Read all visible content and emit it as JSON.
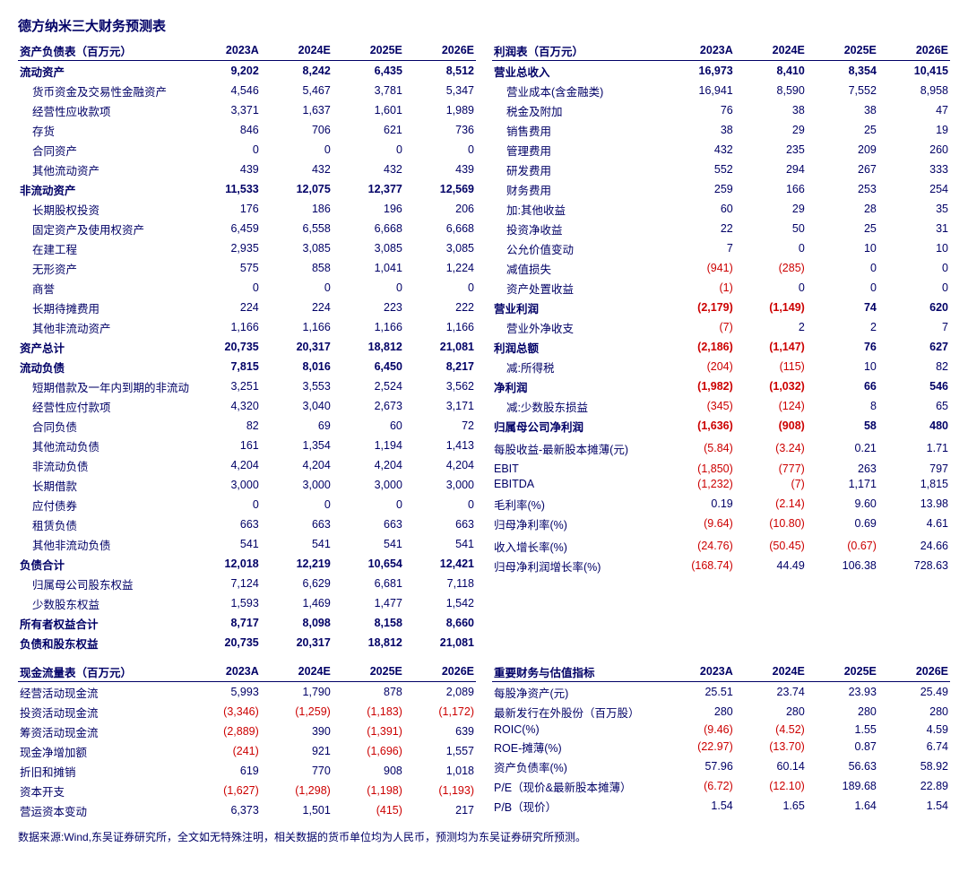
{
  "color_text": "#000066",
  "color_neg": "#cc0000",
  "color_bg": "#ffffff",
  "font_size_body": 12.5,
  "font_size_title": 15,
  "title": "德方纳米三大财务预测表",
  "years": [
    "2023A",
    "2024E",
    "2025E",
    "2026E"
  ],
  "balance_sheet": {
    "header": "资产负债表（百万元）",
    "rows": [
      {
        "label": "流动资产",
        "vals": [
          "9,202",
          "8,242",
          "6,435",
          "8,512"
        ],
        "bold": true
      },
      {
        "label": "货币资金及交易性金融资产",
        "vals": [
          "4,546",
          "5,467",
          "3,781",
          "5,347"
        ],
        "indent": true
      },
      {
        "label": "经营性应收款项",
        "vals": [
          "3,371",
          "1,637",
          "1,601",
          "1,989"
        ],
        "indent": true
      },
      {
        "label": "存货",
        "vals": [
          "846",
          "706",
          "621",
          "736"
        ],
        "indent": true
      },
      {
        "label": "合同资产",
        "vals": [
          "0",
          "0",
          "0",
          "0"
        ],
        "indent": true
      },
      {
        "label": "其他流动资产",
        "vals": [
          "439",
          "432",
          "432",
          "439"
        ],
        "indent": true
      },
      {
        "label": "非流动资产",
        "vals": [
          "11,533",
          "12,075",
          "12,377",
          "12,569"
        ],
        "bold": true
      },
      {
        "label": "长期股权投资",
        "vals": [
          "176",
          "186",
          "196",
          "206"
        ],
        "indent": true
      },
      {
        "label": "固定资产及使用权资产",
        "vals": [
          "6,459",
          "6,558",
          "6,668",
          "6,668"
        ],
        "indent": true
      },
      {
        "label": "在建工程",
        "vals": [
          "2,935",
          "3,085",
          "3,085",
          "3,085"
        ],
        "indent": true
      },
      {
        "label": "无形资产",
        "vals": [
          "575",
          "858",
          "1,041",
          "1,224"
        ],
        "indent": true
      },
      {
        "label": "商誉",
        "vals": [
          "0",
          "0",
          "0",
          "0"
        ],
        "indent": true
      },
      {
        "label": "长期待摊费用",
        "vals": [
          "224",
          "224",
          "223",
          "222"
        ],
        "indent": true
      },
      {
        "label": "其他非流动资产",
        "vals": [
          "1,166",
          "1,166",
          "1,166",
          "1,166"
        ],
        "indent": true
      },
      {
        "label": "资产总计",
        "vals": [
          "20,735",
          "20,317",
          "18,812",
          "21,081"
        ],
        "bold": true
      },
      {
        "label": "流动负债",
        "vals": [
          "7,815",
          "8,016",
          "6,450",
          "8,217"
        ],
        "bold": true
      },
      {
        "label": "短期借款及一年内到期的非流动负债",
        "vals": [
          "3,251",
          "3,553",
          "2,524",
          "3,562"
        ],
        "indent": true
      },
      {
        "label": "经营性应付款项",
        "vals": [
          "4,320",
          "3,040",
          "2,673",
          "3,171"
        ],
        "indent": true
      },
      {
        "label": "合同负债",
        "vals": [
          "82",
          "69",
          "60",
          "72"
        ],
        "indent": true
      },
      {
        "label": "其他流动负债",
        "vals": [
          "161",
          "1,354",
          "1,194",
          "1,413"
        ],
        "indent": true
      },
      {
        "label": "非流动负债",
        "vals": [
          "4,204",
          "4,204",
          "4,204",
          "4,204"
        ],
        "indent": true
      },
      {
        "label": "长期借款",
        "vals": [
          "3,000",
          "3,000",
          "3,000",
          "3,000"
        ],
        "indent": true
      },
      {
        "label": "应付债券",
        "vals": [
          "0",
          "0",
          "0",
          "0"
        ],
        "indent": true
      },
      {
        "label": "租赁负债",
        "vals": [
          "663",
          "663",
          "663",
          "663"
        ],
        "indent": true
      },
      {
        "label": "其他非流动负债",
        "vals": [
          "541",
          "541",
          "541",
          "541"
        ],
        "indent": true
      },
      {
        "label": "负债合计",
        "vals": [
          "12,018",
          "12,219",
          "10,654",
          "12,421"
        ],
        "bold": true
      },
      {
        "label": "归属母公司股东权益",
        "vals": [
          "7,124",
          "6,629",
          "6,681",
          "7,118"
        ],
        "indent": true
      },
      {
        "label": "少数股东权益",
        "vals": [
          "1,593",
          "1,469",
          "1,477",
          "1,542"
        ],
        "indent": true
      },
      {
        "label": "所有者权益合计",
        "vals": [
          "8,717",
          "8,098",
          "8,158",
          "8,660"
        ],
        "bold": true
      },
      {
        "label": "负债和股东权益",
        "vals": [
          "20,735",
          "20,317",
          "18,812",
          "21,081"
        ],
        "bold": true
      }
    ]
  },
  "income_statement": {
    "header": "利润表（百万元）",
    "rows": [
      {
        "label": "营业总收入",
        "vals": [
          "16,973",
          "8,410",
          "8,354",
          "10,415"
        ],
        "bold": true
      },
      {
        "label": "营业成本(含金融类)",
        "vals": [
          "16,941",
          "8,590",
          "7,552",
          "8,958"
        ],
        "indent": true
      },
      {
        "label": "税金及附加",
        "vals": [
          "76",
          "38",
          "38",
          "47"
        ],
        "indent": true
      },
      {
        "label": "销售费用",
        "vals": [
          "38",
          "29",
          "25",
          "19"
        ],
        "indent": true
      },
      {
        "label": "管理费用",
        "vals": [
          "432",
          "235",
          "209",
          "260"
        ],
        "indent": true
      },
      {
        "label": "研发费用",
        "vals": [
          "552",
          "294",
          "267",
          "333"
        ],
        "indent": true
      },
      {
        "label": "财务费用",
        "vals": [
          "259",
          "166",
          "253",
          "254"
        ],
        "indent": true
      },
      {
        "label": "加:其他收益",
        "vals": [
          "60",
          "29",
          "28",
          "35"
        ],
        "indent": true
      },
      {
        "label": "投资净收益",
        "vals": [
          "22",
          "50",
          "25",
          "31"
        ],
        "indent": true
      },
      {
        "label": "公允价值变动",
        "vals": [
          "7",
          "0",
          "10",
          "10"
        ],
        "indent": true
      },
      {
        "label": "减值损失",
        "vals": [
          "(941)",
          "(285)",
          "0",
          "0"
        ],
        "indent": true
      },
      {
        "label": "资产处置收益",
        "vals": [
          "(1)",
          "0",
          "0",
          "0"
        ],
        "indent": true
      },
      {
        "label": "营业利润",
        "vals": [
          "(2,179)",
          "(1,149)",
          "74",
          "620"
        ],
        "bold": true
      },
      {
        "label": "营业外净收支",
        "vals": [
          "(7)",
          "2",
          "2",
          "7"
        ],
        "indent": true
      },
      {
        "label": "利润总额",
        "vals": [
          "(2,186)",
          "(1,147)",
          "76",
          "627"
        ],
        "bold": true
      },
      {
        "label": "减:所得税",
        "vals": [
          "(204)",
          "(115)",
          "10",
          "82"
        ],
        "indent": true
      },
      {
        "label": "净利润",
        "vals": [
          "(1,982)",
          "(1,032)",
          "66",
          "546"
        ],
        "bold": true
      },
      {
        "label": "减:少数股东损益",
        "vals": [
          "(345)",
          "(124)",
          "8",
          "65"
        ],
        "indent": true
      },
      {
        "label": "归属母公司净利润",
        "vals": [
          "(1,636)",
          "(908)",
          "58",
          "480"
        ],
        "bold": true
      },
      {
        "label": "",
        "vals": [
          "",
          "",
          "",
          ""
        ]
      },
      {
        "label": "每股收益-最新股本摊薄(元)",
        "vals": [
          "(5.84)",
          "(3.24)",
          "0.21",
          "1.71"
        ]
      },
      {
        "label": "",
        "vals": [
          "",
          "",
          "",
          ""
        ]
      },
      {
        "label": "EBIT",
        "vals": [
          "(1,850)",
          "(777)",
          "263",
          "797"
        ]
      },
      {
        "label": "EBITDA",
        "vals": [
          "(1,232)",
          "(7)",
          "1,171",
          "1,815"
        ]
      },
      {
        "label": "",
        "vals": [
          "",
          "",
          "",
          ""
        ]
      },
      {
        "label": "毛利率(%)",
        "vals": [
          "0.19",
          "(2.14)",
          "9.60",
          "13.98"
        ]
      },
      {
        "label": "归母净利率(%)",
        "vals": [
          "(9.64)",
          "(10.80)",
          "0.69",
          "4.61"
        ]
      },
      {
        "label": "",
        "vals": [
          "",
          "",
          "",
          ""
        ]
      },
      {
        "label": "收入增长率(%)",
        "vals": [
          "(24.76)",
          "(50.45)",
          "(0.67)",
          "24.66"
        ]
      },
      {
        "label": "归母净利润增长率(%)",
        "vals": [
          "(168.74)",
          "44.49",
          "106.38",
          "728.63"
        ]
      }
    ]
  },
  "cash_flow": {
    "header": "现金流量表（百万元）",
    "rows": [
      {
        "label": "经营活动现金流",
        "vals": [
          "5,993",
          "1,790",
          "878",
          "2,089"
        ]
      },
      {
        "label": "投资活动现金流",
        "vals": [
          "(3,346)",
          "(1,259)",
          "(1,183)",
          "(1,172)"
        ]
      },
      {
        "label": "筹资活动现金流",
        "vals": [
          "(2,889)",
          "390",
          "(1,391)",
          "639"
        ]
      },
      {
        "label": "现金净增加额",
        "vals": [
          "(241)",
          "921",
          "(1,696)",
          "1,557"
        ]
      },
      {
        "label": "折旧和摊销",
        "vals": [
          "619",
          "770",
          "908",
          "1,018"
        ]
      },
      {
        "label": "资本开支",
        "vals": [
          "(1,627)",
          "(1,298)",
          "(1,198)",
          "(1,193)"
        ]
      },
      {
        "label": "营运资本变动",
        "vals": [
          "6,373",
          "1,501",
          "(415)",
          "217"
        ]
      }
    ]
  },
  "metrics": {
    "header": "重要财务与估值指标",
    "rows": [
      {
        "label": "每股净资产(元)",
        "vals": [
          "25.51",
          "23.74",
          "23.93",
          "25.49"
        ]
      },
      {
        "label": "最新发行在外股份（百万股）",
        "vals": [
          "280",
          "280",
          "280",
          "280"
        ]
      },
      {
        "label": "ROIC(%)",
        "vals": [
          "(9.46)",
          "(4.52)",
          "1.55",
          "4.59"
        ]
      },
      {
        "label": "ROE-摊薄(%)",
        "vals": [
          "(22.97)",
          "(13.70)",
          "0.87",
          "6.74"
        ]
      },
      {
        "label": "资产负债率(%)",
        "vals": [
          "57.96",
          "60.14",
          "56.63",
          "58.92"
        ]
      },
      {
        "label": "P/E（现价&最新股本摊薄）",
        "vals": [
          "(6.72)",
          "(12.10)",
          "189.68",
          "22.89"
        ]
      },
      {
        "label": "P/B（现价）",
        "vals": [
          "1.54",
          "1.65",
          "1.64",
          "1.54"
        ]
      }
    ]
  },
  "footnote": "数据来源:Wind,东吴证券研究所，全文如无特殊注明，相关数据的货币单位均为人民币，预测均为东吴证券研究所预测。"
}
